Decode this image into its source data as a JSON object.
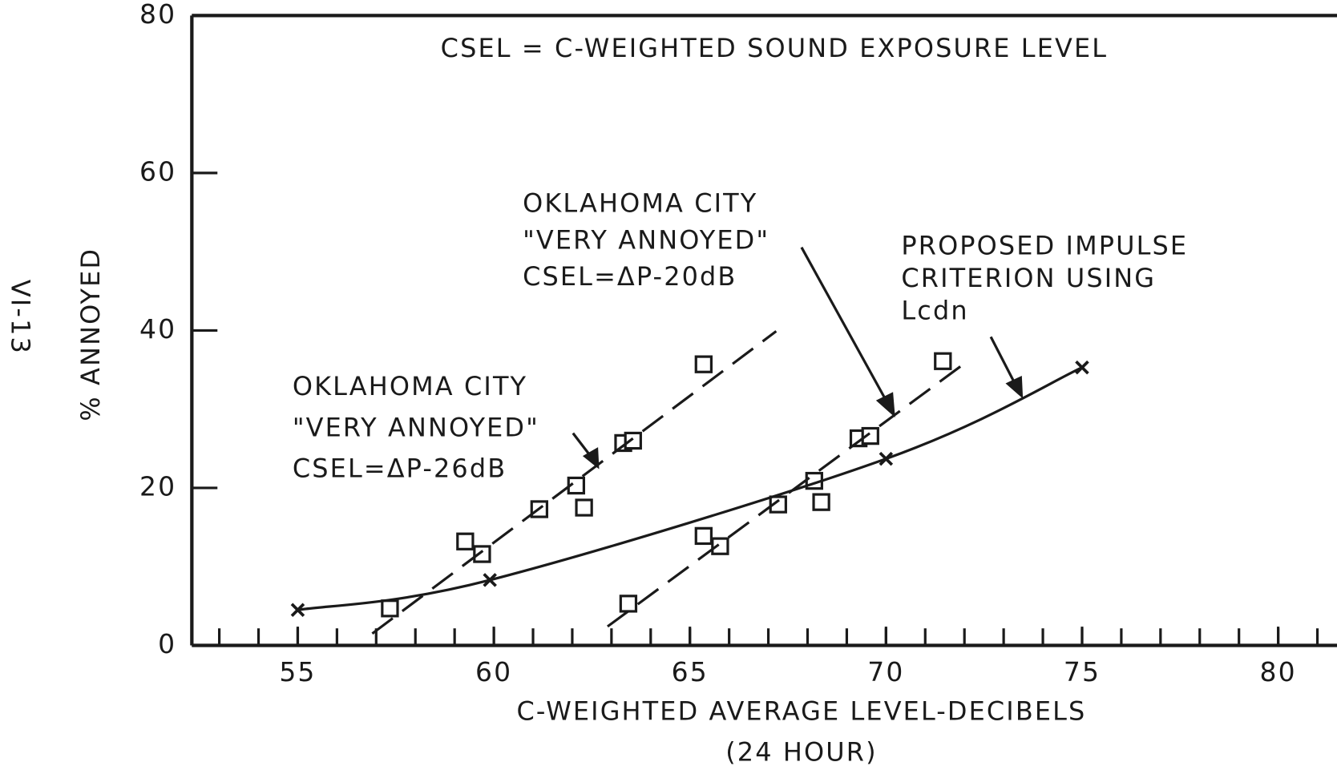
{
  "chart_data": {
    "type": "scatter",
    "page_label": "VI-13",
    "ylabel": "% ANNOYED",
    "xlabel": [
      "C-WEIGHTED AVERAGE LEVEL-DECIBELS",
      "(24 HOUR)"
    ],
    "annotations": [
      {
        "lines": [
          "CSEL = C-WEIGHTED SOUND EXPOSURE LEVEL"
        ]
      },
      {
        "lines": [
          "OKLAHOMA CITY",
          "\"VERY ANNOYED\"",
          "CSEL=ΔP-20dB"
        ]
      },
      {
        "lines": [
          "PROPOSED IMPULSE",
          "CRITERION USING",
          "Lcdn"
        ]
      },
      {
        "lines": [
          "OKLAHOMA CITY",
          "\"VERY ANNOYED\"",
          "CSEL=ΔP-26dB"
        ]
      }
    ],
    "xlim": [
      52.3,
      81.5
    ],
    "ylim": [
      0,
      80
    ],
    "xticks": [
      55,
      60,
      65,
      70,
      75,
      80
    ],
    "xminor_ticks": [
      53,
      54,
      55,
      56,
      57,
      58,
      59,
      60,
      61,
      62,
      63,
      64,
      65,
      66,
      67,
      68,
      69,
      70,
      71,
      72,
      73,
      74,
      75,
      76,
      77,
      78,
      79,
      80,
      81
    ],
    "yticks": [
      0,
      20,
      40,
      60,
      80
    ],
    "color": "#1a1a1a",
    "series": [
      {
        "marker": "square",
        "x": [
          57.35,
          59.27,
          59.7,
          61.16,
          62.1,
          62.3,
          63.3,
          63.55,
          65.35
        ],
        "values": [
          4.7,
          13.2,
          11.6,
          17.3,
          20.3,
          17.5,
          25.7,
          26.0,
          35.7
        ]
      },
      {
        "marker": "square",
        "x": [
          63.43,
          65.35,
          65.77,
          67.25,
          68.17,
          68.35,
          69.3,
          69.6,
          71.45
        ],
        "values": [
          5.3,
          13.9,
          12.6,
          17.9,
          20.9,
          18.2,
          26.3,
          26.6,
          36.1
        ]
      },
      {
        "line": "dashed",
        "x": [
          56.9,
          67.2
        ],
        "values": [
          1.5,
          39.9
        ]
      },
      {
        "line": "dashed",
        "x": [
          62.9,
          72.0
        ],
        "values": [
          2.4,
          35.8
        ]
      },
      {
        "line": "smooth",
        "marker": "cross",
        "x": [
          55,
          59.9,
          70,
          75
        ],
        "values": [
          4.5,
          8.3,
          23.7,
          35.3
        ]
      }
    ]
  }
}
